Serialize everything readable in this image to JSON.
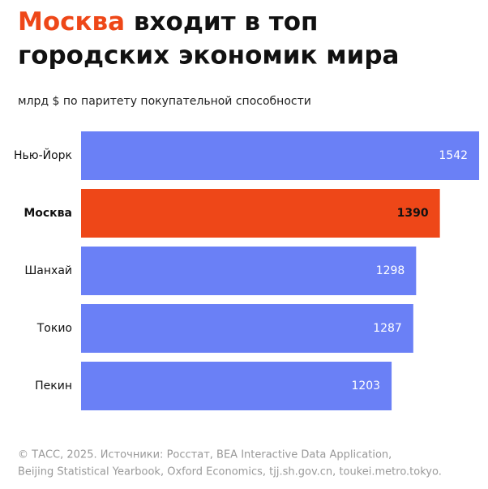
{
  "chart_data": {
    "type": "bar",
    "orientation": "horizontal",
    "title_accent": "Москва",
    "title_lines": [
      "входит в топ",
      "городских экономик мира"
    ],
    "subtitle": "млрд $ по паритету покупательной способности",
    "categories": [
      "Нью-Йорк",
      "Москва",
      "Шанхай",
      "Токио",
      "Пекин"
    ],
    "values": [
      1542,
      1390,
      1298,
      1287,
      1203
    ],
    "color": "#6a80f6",
    "highlight_color": "#ee4718",
    "highlight": 1,
    "xlim": [
      0,
      1545
    ],
    "footnote": [
      "© ТАСС, 2025. Источники: Росстат, BEA Interactive Data Application,",
      "Beijing Statistical Yearbook, Oxford Economics, tjj.sh.gov.cn, toukei.metro.tokyo."
    ]
  }
}
